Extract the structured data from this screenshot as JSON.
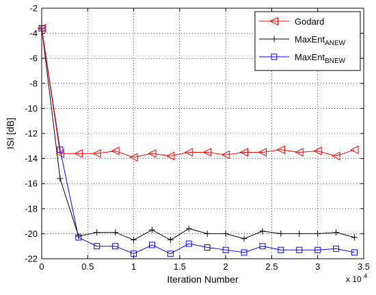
{
  "chart_data": {
    "type": "line",
    "title": "",
    "xlabel": "Iteration Number",
    "ylabel": "ISI [dB]",
    "x_multiplier_label": {
      "base": "x 10",
      "exp": "4"
    },
    "xlim": [
      0,
      3.5
    ],
    "ylim": [
      -22,
      -2
    ],
    "xticks": [
      0,
      0.5,
      1,
      1.5,
      2,
      2.5,
      3,
      3.5
    ],
    "xtick_labels": [
      "0",
      "0.5",
      "1",
      "1.5",
      "2",
      "2.5",
      "3",
      "3.5"
    ],
    "yticks": [
      -22,
      -20,
      -18,
      -16,
      -14,
      -12,
      -10,
      -8,
      -6,
      -4,
      -2
    ],
    "ytick_labels": [
      "-22",
      "-20",
      "-18",
      "-16",
      "-14",
      "-12",
      "-10",
      "-8",
      "-6",
      "-4",
      "-2"
    ],
    "grid": true,
    "legend_position": "top-right",
    "x": [
      0,
      0.2,
      0.4,
      0.6,
      0.8,
      1.0,
      1.2,
      1.4,
      1.6,
      1.8,
      2.0,
      2.2,
      2.4,
      2.6,
      2.8,
      3.0,
      3.2,
      3.4
    ],
    "series": [
      {
        "name": "Godard",
        "legend_sub": "",
        "color": "#ff0000",
        "marker": "triangle-left",
        "values": [
          -3.6,
          -13.6,
          -13.6,
          -13.6,
          -13.4,
          -13.9,
          -13.6,
          -13.8,
          -13.5,
          -13.5,
          -13.7,
          -13.5,
          -13.5,
          -13.3,
          -13.5,
          -13.4,
          -13.8,
          -13.3
        ]
      },
      {
        "name": "MaxEnt",
        "legend_sub": "ANEW",
        "color": "#000000",
        "marker": "plus",
        "values": [
          -3.6,
          -15.6,
          -20.2,
          -19.9,
          -19.9,
          -20.5,
          -19.7,
          -20.5,
          -19.6,
          -20.0,
          -20.0,
          -20.4,
          -19.8,
          -20.0,
          -20.0,
          -20.0,
          -19.9,
          -20.3
        ]
      },
      {
        "name": "MaxEnt",
        "legend_sub": "BNEW",
        "color": "#0000ff",
        "marker": "square",
        "values": [
          -3.6,
          -13.3,
          -20.3,
          -21.0,
          -21.0,
          -21.6,
          -20.9,
          -21.6,
          -20.8,
          -21.1,
          -21.3,
          -21.5,
          -21.0,
          -21.3,
          -21.3,
          -21.3,
          -21.2,
          -21.5
        ]
      }
    ]
  }
}
